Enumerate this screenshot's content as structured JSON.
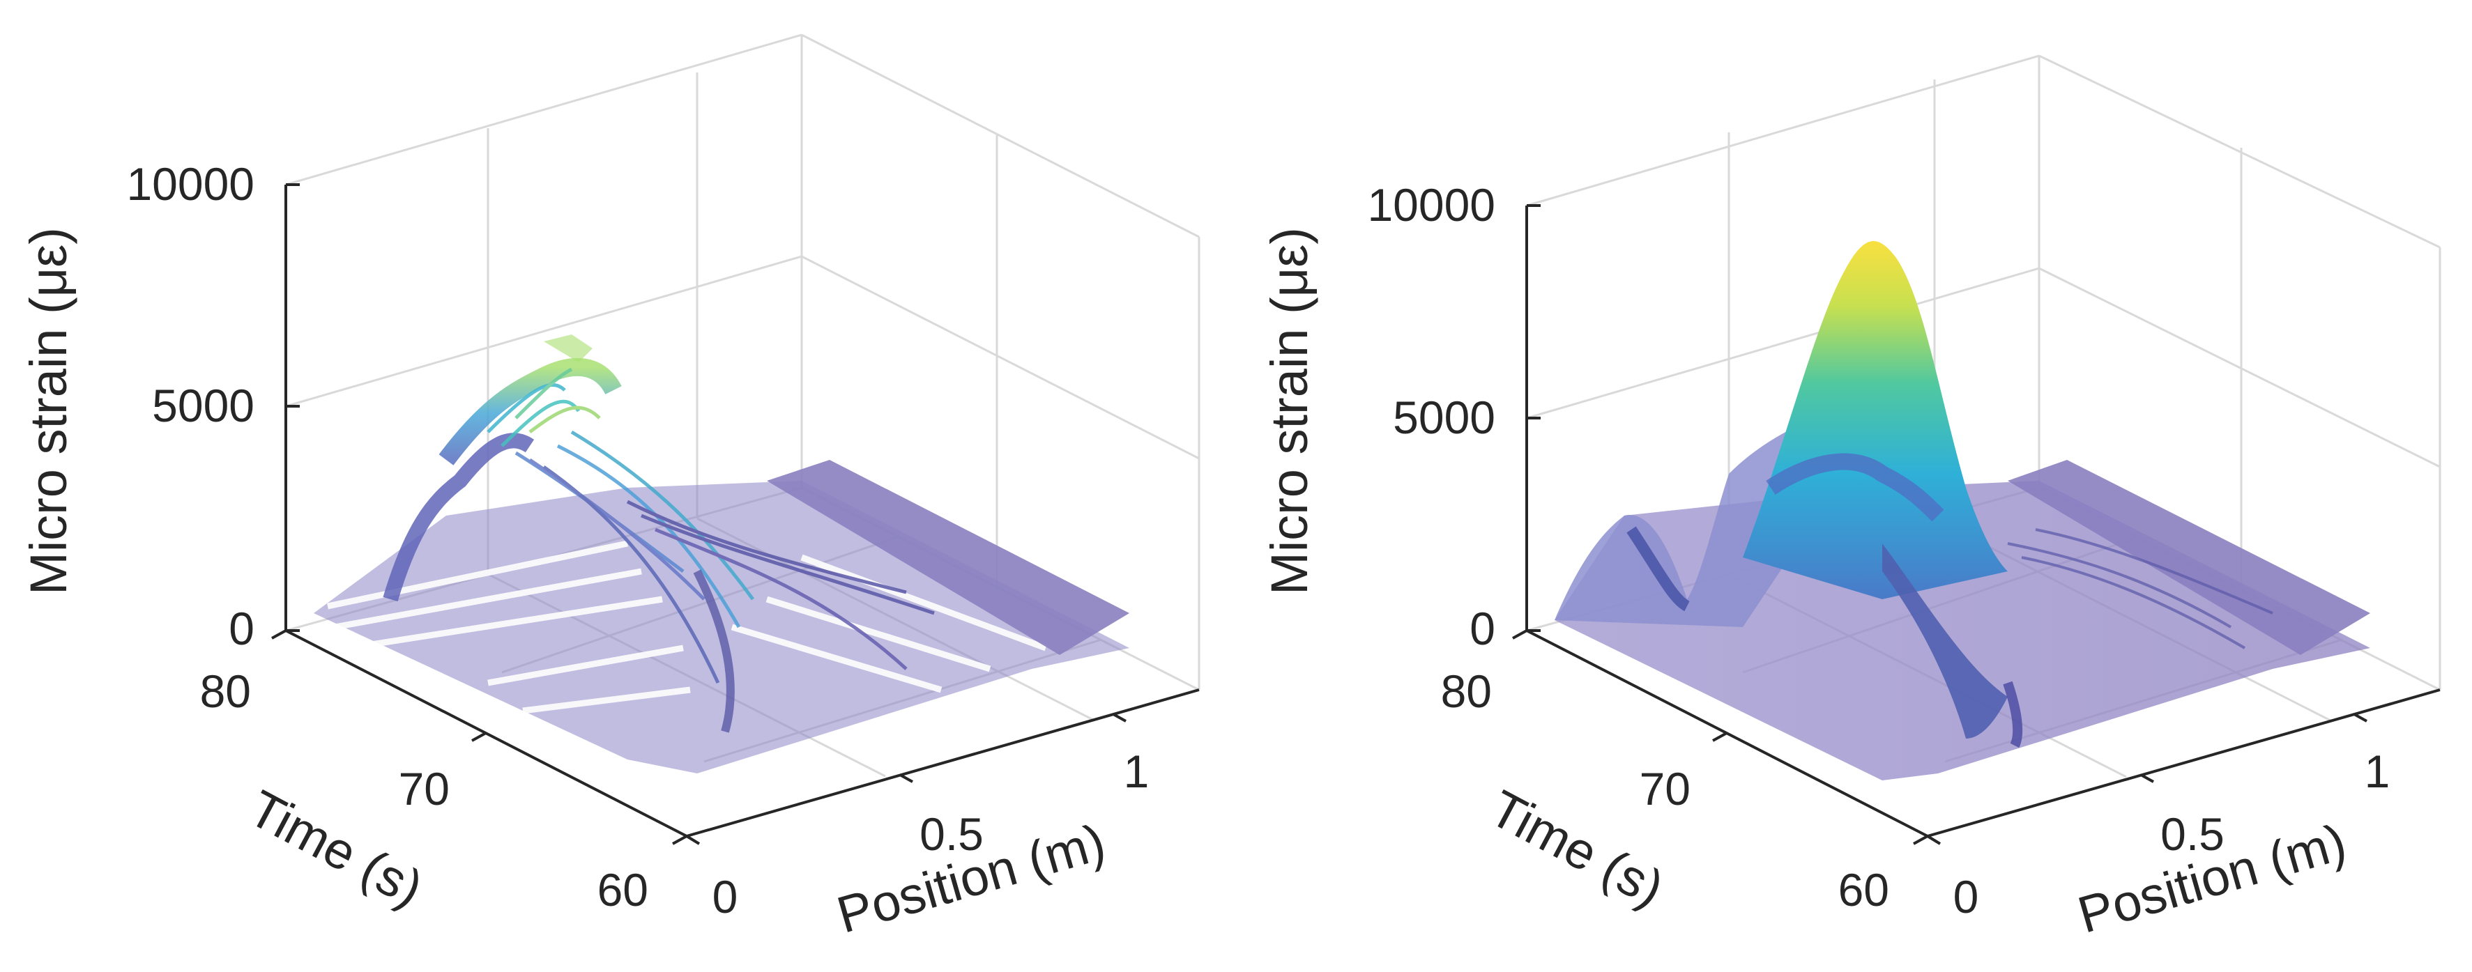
{
  "chart_data": [
    {
      "type": "surface3d",
      "panel": "left",
      "rendering": "fragmented / noisy reconstruction",
      "xlabel": "Position (m)",
      "ylabel": "Time (s)",
      "zlabel": "Micro strain (με)",
      "xlim": [
        0,
        1.2
      ],
      "ylim": [
        60,
        80
      ],
      "zlim": [
        0,
        10000
      ],
      "xticks": [
        "0",
        "0.5",
        "1"
      ],
      "yticks": [
        "60",
        "70",
        "80"
      ],
      "zticks": [
        "0",
        "5000",
        "10000"
      ],
      "peak": {
        "position": 0.05,
        "time": 71,
        "strain": 5600
      },
      "colormap": [
        "#6a5fb0",
        "#7e8ed8",
        "#5fb8e0",
        "#40c8b8",
        "#b8e060"
      ]
    },
    {
      "type": "surface3d",
      "panel": "right",
      "rendering": "smooth surface",
      "xlabel": "Position (m)",
      "ylabel": "Time (s)",
      "zlabel": "Micro strain (με)",
      "xlim": [
        0,
        1.2
      ],
      "ylim": [
        60,
        80
      ],
      "zlim": [
        0,
        10000
      ],
      "xticks": [
        "0",
        "0.5",
        "1"
      ],
      "yticks": [
        "60",
        "70",
        "80"
      ],
      "zticks": [
        "0",
        "5000",
        "10000"
      ],
      "peak": {
        "position": 0.05,
        "time": 71,
        "strain": 8800
      },
      "colormap": [
        "#6a5fb0",
        "#7e8ed8",
        "#5fb8e0",
        "#40c8b8",
        "#b8e060",
        "#f8e040"
      ]
    }
  ]
}
